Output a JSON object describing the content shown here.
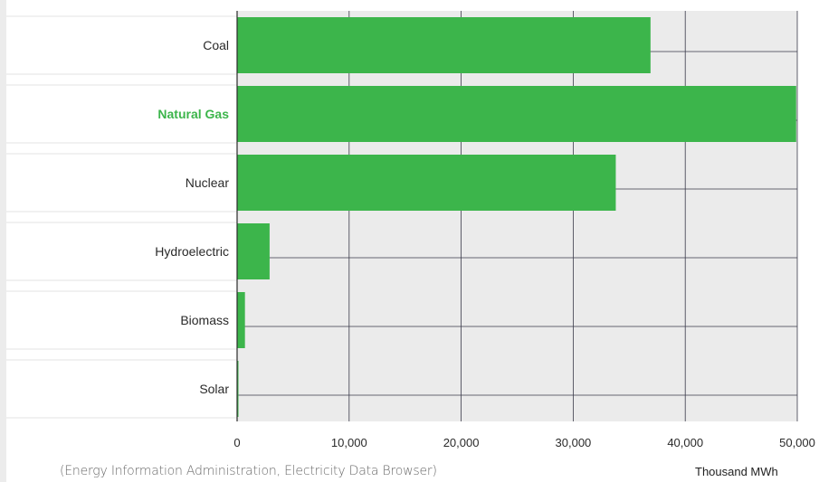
{
  "chart_data": {
    "type": "bar",
    "orientation": "horizontal",
    "categories": [
      "Coal",
      "Natural Gas",
      "Nuclear",
      "Hydroelectric",
      "Biomass",
      "Solar"
    ],
    "values": [
      36900,
      49900,
      33800,
      2900,
      700,
      80
    ],
    "highlighted_category": "Natural Gas",
    "xlim": [
      0,
      50000
    ],
    "xticks": [
      "0",
      "10,000",
      "20,000",
      "30,000",
      "40,000",
      "50,000"
    ],
    "xlabel": "Thousand MWh",
    "ylabel": "",
    "title": "",
    "grid": true,
    "colors": {
      "bar": "#3cb54b",
      "highlight_label": "#3cb54b",
      "plot_background": "#ebebeb",
      "grid": "#3a3a4a"
    }
  },
  "footer": {
    "source": "(Energy Information Administration, Electricity Data Browser)",
    "unit": "Thousand MWh"
  }
}
